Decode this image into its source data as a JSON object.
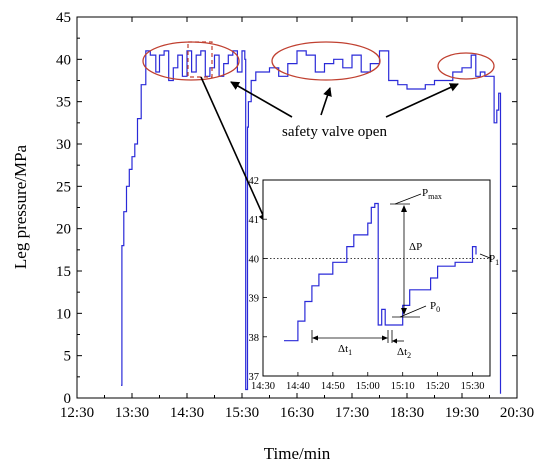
{
  "chart_data": [
    {
      "type": "line",
      "xlabel": "Time/min",
      "ylabel": "Leg pressure/MPa",
      "xlim": [
        "12:30",
        "20:30"
      ],
      "ylim": [
        0,
        45
      ],
      "xticks": [
        "12:30",
        "13:30",
        "14:30",
        "15:30",
        "16:30",
        "17:30",
        "18:30",
        "19:30",
        "20:30"
      ],
      "yticks": [
        0,
        5,
        10,
        15,
        20,
        25,
        30,
        35,
        40,
        45
      ],
      "series": [
        {
          "color": "#2a2ad8",
          "x": [
            "13:18",
            "13:19",
            "13:21",
            "13:24",
            "13:27",
            "13:30",
            "13:33",
            "13:36",
            "13:40",
            "13:45",
            "13:50",
            "13:56",
            "14:00",
            "14:05",
            "14:10",
            "14:15",
            "14:20",
            "14:25",
            "14:30",
            "14:35",
            "14:40",
            "14:45",
            "14:50",
            "14:55",
            "15:00",
            "15:05",
            "15:10",
            "15:15",
            "15:20",
            "15:25",
            "15:30",
            "15:33",
            "15:34",
            "15:36",
            "15:37",
            "15:40",
            "15:45",
            "15:50",
            "15:55",
            "16:00",
            "16:10",
            "16:20",
            "16:30",
            "16:40",
            "16:50",
            "17:00",
            "17:10",
            "17:20",
            "17:30",
            "17:40",
            "17:50",
            "18:00",
            "18:10",
            "18:20",
            "18:30",
            "18:40",
            "18:50",
            "19:00",
            "19:10",
            "19:20",
            "19:30",
            "19:40",
            "19:45",
            "19:50",
            "19:55",
            "20:00",
            "20:05",
            "20:08",
            "20:10",
            "20:12"
          ],
          "y": [
            1.5,
            18,
            22,
            25,
            27,
            28.5,
            30,
            33,
            37,
            41,
            40.5,
            38.5,
            40.5,
            41,
            37.5,
            39,
            40.5,
            38,
            41,
            38.5,
            40.5,
            41,
            38,
            39,
            40.5,
            38,
            39.5,
            40.5,
            41,
            38.5,
            41,
            40,
            1,
            32,
            35,
            37.5,
            38.5,
            38.5,
            38.5,
            39,
            38,
            39.5,
            41,
            40.5,
            38.5,
            39.5,
            40,
            39,
            40.5,
            38.5,
            39.5,
            41,
            37.5,
            37,
            36.5,
            36.5,
            37,
            37.5,
            37.5,
            38.5,
            39,
            40.5,
            38,
            38.5,
            38,
            38,
            32.5,
            34,
            36,
            0.5
          ]
        }
      ],
      "annotations": [
        {
          "text": "safety valve open"
        }
      ]
    },
    {
      "type": "line",
      "inset": true,
      "xlim": [
        "14:30",
        "15:35"
      ],
      "ylim": [
        37,
        42
      ],
      "xticks": [
        "14:30",
        "14:40",
        "14:50",
        "15:00",
        "15:10",
        "15:20",
        "15:30"
      ],
      "yticks": [
        37,
        38,
        39,
        40,
        41,
        42
      ],
      "reference_line_y": 40,
      "series": [
        {
          "color": "#2a2ad8",
          "x": [
            "14:36",
            "14:40",
            "14:42",
            "14:44",
            "14:46",
            "14:50",
            "14:54",
            "14:56",
            "15:00",
            "15:01",
            "15:02",
            "15:03",
            "15:04",
            "15:05",
            "15:06",
            "15:10",
            "15:12",
            "15:18",
            "15:20",
            "15:25",
            "15:30",
            "15:31"
          ],
          "y": [
            37.9,
            38.4,
            38.9,
            39.3,
            39.6,
            39.9,
            40.3,
            40.6,
            40.9,
            41.3,
            41.4,
            38.3,
            38.7,
            38.3,
            38.3,
            38.8,
            39.2,
            39.5,
            39.8,
            39.9,
            40.3,
            40.1
          ]
        }
      ],
      "labels": {
        "pmax_main": "P",
        "pmax_sub": "max",
        "p0_main": "P",
        "p0_sub": "0",
        "p1_main": "P",
        "p1_sub": "1",
        "dp": "ΔP",
        "dt1_main": "Δt",
        "dt1_sub": "1",
        "dt2_main": "Δt",
        "dt2_sub": "2"
      }
    }
  ]
}
